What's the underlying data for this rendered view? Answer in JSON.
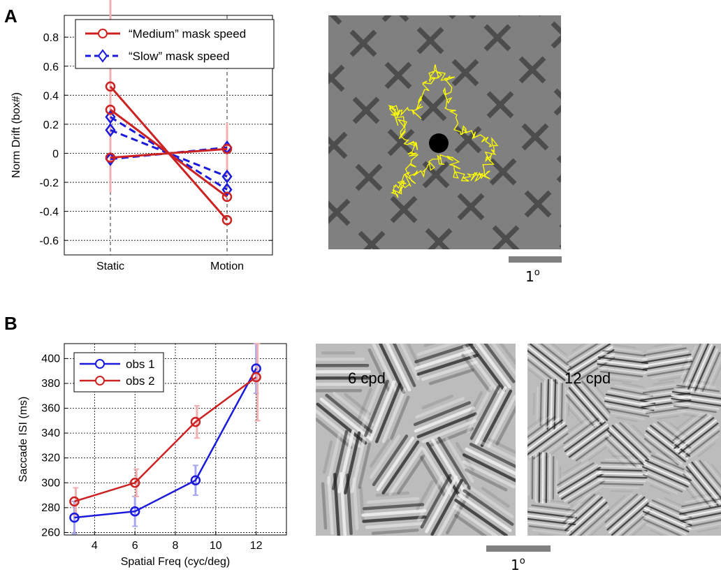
{
  "panels": {
    "a": "A",
    "b": "B"
  },
  "colors": {
    "red": "#cc2222",
    "blue": "#1a1adc",
    "red_err": "#f0b0b0",
    "blue_err": "#a8a8ee",
    "gray_bg": "#808080",
    "cross": "#4c4c4c",
    "trace": "#ffff00",
    "scale_bar": "#808080"
  },
  "chart_data": [
    {
      "type": "line",
      "ylabel": "Norm Drift (box#)",
      "xlabel": "",
      "categories": [
        "Static",
        "Motion"
      ],
      "ylim": [
        -0.7,
        0.95
      ],
      "yticks": [
        -0.6,
        -0.4,
        -0.2,
        0,
        0.2,
        0.4,
        0.6,
        0.8
      ],
      "ytick_labels": [
        "-0.6",
        "-0.4",
        "-0.2",
        "0",
        "0.2",
        "0.4",
        "0.6",
        "0.8"
      ],
      "grid": true,
      "legend_position": "top",
      "legend": [
        "“Medium” mask speed",
        "“Slow” mask speed"
      ],
      "series": [
        {
          "name": "“Medium” mask speed",
          "group": "medium",
          "values": [
            0.46,
            -0.46
          ],
          "err": [
            0.6,
            0
          ]
        },
        {
          "name": "“Medium” mask speed",
          "group": "medium",
          "values": [
            0.3,
            -0.3
          ],
          "err": [
            0,
            0
          ]
        },
        {
          "name": "“Medium” mask speed",
          "group": "medium",
          "values": [
            -0.03,
            0.03
          ],
          "err": [
            0.24,
            0.18
          ]
        },
        {
          "name": "“Slow” mask speed",
          "group": "slow",
          "values": [
            0.25,
            -0.25
          ],
          "err": [
            0,
            0
          ]
        },
        {
          "name": "“Slow” mask speed",
          "group": "slow",
          "values": [
            0.16,
            -0.16
          ],
          "err": [
            0,
            0
          ]
        },
        {
          "name": "“Slow” mask speed",
          "group": "slow",
          "values": [
            -0.04,
            0.04
          ],
          "err": [
            0,
            0
          ]
        }
      ]
    },
    {
      "type": "line",
      "xlabel": "Spatial Freq (cyc/deg)",
      "ylabel": "Saccade ISI (ms)",
      "xlim": [
        2.5,
        13.5
      ],
      "ylim": [
        258,
        412
      ],
      "xticks": [
        4,
        6,
        8,
        10,
        12
      ],
      "yticks": [
        260,
        280,
        300,
        320,
        340,
        360,
        380,
        400
      ],
      "grid": true,
      "legend_position": "top-left",
      "legend": [
        "obs 1",
        "obs 2"
      ],
      "series": [
        {
          "name": "obs 1",
          "x": [
            3,
            6,
            9,
            12
          ],
          "values": [
            272,
            277,
            302,
            392
          ],
          "err": [
            13,
            12,
            12,
            20
          ]
        },
        {
          "name": "obs 2",
          "x": [
            3,
            6,
            9,
            12
          ],
          "values": [
            285,
            300,
            349,
            385
          ],
          "err": [
            11,
            11,
            13,
            35
          ]
        }
      ]
    }
  ],
  "stimuli": {
    "scale_label_top": "1o",
    "scale_label_bottom": "1o",
    "grating_6": "6 cpd",
    "grating_12": "12 cpd"
  }
}
